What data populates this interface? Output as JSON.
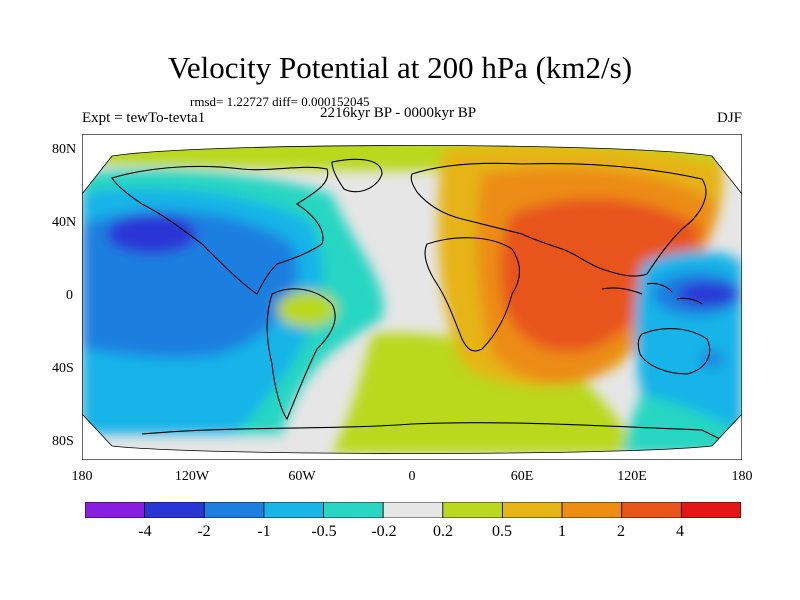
{
  "header": {
    "title": "Velocity Potential at 200 hPa (km2/s)",
    "stats": "rmsd= 1.22727 diff= 0.000152045",
    "expt": "Expt = tewTo-tevta1",
    "period": "2216kyr BP - 0000kyr BP",
    "season": "DJF"
  },
  "axes": {
    "y_ticks": [
      "80N",
      "40N",
      "0",
      "40S",
      "80S"
    ],
    "x_ticks": [
      "180",
      "120W",
      "60W",
      "0",
      "60E",
      "120E",
      "180"
    ]
  },
  "colorbar": {
    "colors": [
      "#8a1ee0",
      "#2a35d6",
      "#1f7fe0",
      "#19b4e8",
      "#28d6c2",
      "#e6e6e6",
      "#bad81f",
      "#e6b414",
      "#ec8c12",
      "#e8541a",
      "#e41717"
    ],
    "labels": [
      "-4",
      "-2",
      "-1",
      "-0.5",
      "-0.2",
      "0.2",
      "0.5",
      "1",
      "2",
      "4"
    ]
  },
  "map": {
    "projection": "Equal-area world map centered on 0°, land coastlines in black",
    "field_pattern": "Positive (orange-red) velocity potential over Africa, Eurasia and Indian Ocean; negative (blue) over Pacific and Americas"
  }
}
